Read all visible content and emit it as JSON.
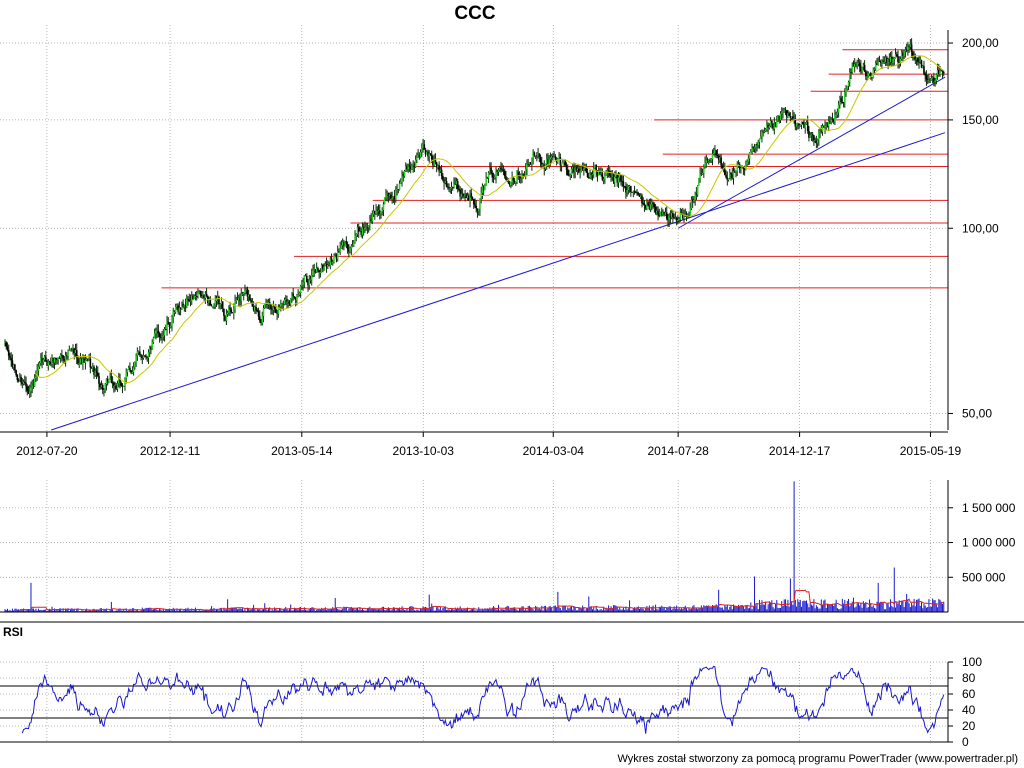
{
  "chart_data": {
    "type": "line",
    "title": "CCC",
    "footer": "Wykres został stworzony za pomocą programu PowerTrader (www.powertrader.pl)",
    "x_ticks": [
      "2012-07-20",
      "2012-12-11",
      "2013-05-14",
      "2013-10-03",
      "2014-03-04",
      "2014-07-28",
      "2014-12-17",
      "2015-05-19"
    ],
    "price": {
      "scale": "log",
      "ylim": [
        47,
        210
      ],
      "y_ticks": [
        {
          "value": 200,
          "label": "200,00"
        },
        {
          "value": 150,
          "label": "150,00"
        },
        {
          "value": 100,
          "label": "100,00"
        },
        {
          "value": 50,
          "label": "50,00"
        }
      ],
      "series": [
        {
          "type": "candlestick-close",
          "x": [
            "2012-06-01",
            "2012-06-15",
            "2012-07-02",
            "2012-07-20",
            "2012-08-10",
            "2012-09-01",
            "2012-09-25",
            "2012-10-15",
            "2012-11-05",
            "2012-11-26",
            "2012-12-11",
            "2013-01-02",
            "2013-01-25",
            "2013-02-15",
            "2013-03-08",
            "2013-03-28",
            "2013-04-18",
            "2013-05-14",
            "2013-06-05",
            "2013-06-26",
            "2013-07-17",
            "2013-08-07",
            "2013-08-28",
            "2013-09-16",
            "2013-10-03",
            "2013-10-25",
            "2013-11-15",
            "2013-12-06",
            "2013-12-27",
            "2014-01-20",
            "2014-02-10",
            "2014-03-04",
            "2014-03-25",
            "2014-04-15",
            "2014-05-06",
            "2014-05-27",
            "2014-06-17",
            "2014-07-08",
            "2014-07-28",
            "2014-08-18",
            "2014-09-08",
            "2014-09-29",
            "2014-10-20",
            "2014-11-10",
            "2014-12-01",
            "2014-12-17",
            "2015-01-08",
            "2015-01-29",
            "2015-02-19",
            "2015-03-12",
            "2015-04-02",
            "2015-04-23",
            "2015-05-19",
            "2015-06-05"
          ],
          "values": [
            64,
            57,
            56,
            60,
            63,
            61,
            55,
            55,
            62,
            66,
            70,
            77,
            76,
            73,
            78,
            74,
            76,
            81,
            86,
            91,
            97,
            106,
            112,
            126,
            133,
            125,
            115,
            113,
            124,
            125,
            130,
            128,
            125,
            125,
            120,
            117,
            110,
            107,
            102,
            114,
            130,
            123,
            128,
            140,
            152,
            145,
            140,
            151,
            183,
            180,
            186,
            191,
            179,
            176
          ]
        },
        {
          "type": "moving-average",
          "color": "#c8c800"
        }
      ],
      "support_lines": [
        {
          "value": 195,
          "from": "2015-02-05"
        },
        {
          "value": 178,
          "from": "2015-01-20"
        },
        {
          "value": 167,
          "from": "2014-12-30"
        },
        {
          "value": 150,
          "from": "2014-06-30"
        },
        {
          "value": 132,
          "from": "2014-07-10"
        },
        {
          "value": 126,
          "from": "2013-09-20"
        },
        {
          "value": 111,
          "from": "2013-08-05"
        },
        {
          "value": 102,
          "from": "2013-07-10"
        },
        {
          "value": 90,
          "from": "2013-05-05"
        },
        {
          "value": 80,
          "from": "2012-12-01"
        }
      ],
      "trend_lines": [
        {
          "from": {
            "x": "2012-07-25",
            "y": 47
          },
          "to": {
            "x": "2015-06-05",
            "y": 143
          }
        },
        {
          "from": {
            "x": "2014-07-28",
            "y": 100
          },
          "to": {
            "x": "2015-06-05",
            "y": 176
          }
        }
      ]
    },
    "volume": {
      "type": "bar",
      "ylim": [
        0,
        1900000
      ],
      "y_ticks": [
        {
          "value": 1500000,
          "label": "1 500 000"
        },
        {
          "value": 1000000,
          "label": "1 000 000"
        },
        {
          "value": 500000,
          "label": "500 000"
        }
      ],
      "spikes": [
        {
          "x": "2012-07-01",
          "value": 420000
        },
        {
          "x": "2013-10-10",
          "value": 250000
        },
        {
          "x": "2014-03-10",
          "value": 290000
        },
        {
          "x": "2014-09-15",
          "value": 320000
        },
        {
          "x": "2014-12-12",
          "value": 1880000
        },
        {
          "x": "2015-03-20",
          "value": 420000
        },
        {
          "x": "2015-04-08",
          "value": 640000
        }
      ]
    },
    "rsi": {
      "label": "RSI",
      "ylim": [
        0,
        100
      ],
      "y_ticks": [
        {
          "value": 100,
          "label": "100"
        },
        {
          "value": 80,
          "label": "80"
        },
        {
          "value": 60,
          "label": "60"
        },
        {
          "value": 40,
          "label": "40"
        },
        {
          "value": 20,
          "label": "20"
        },
        {
          "value": 0,
          "label": "0"
        }
      ],
      "levels": [
        70,
        30
      ]
    }
  }
}
